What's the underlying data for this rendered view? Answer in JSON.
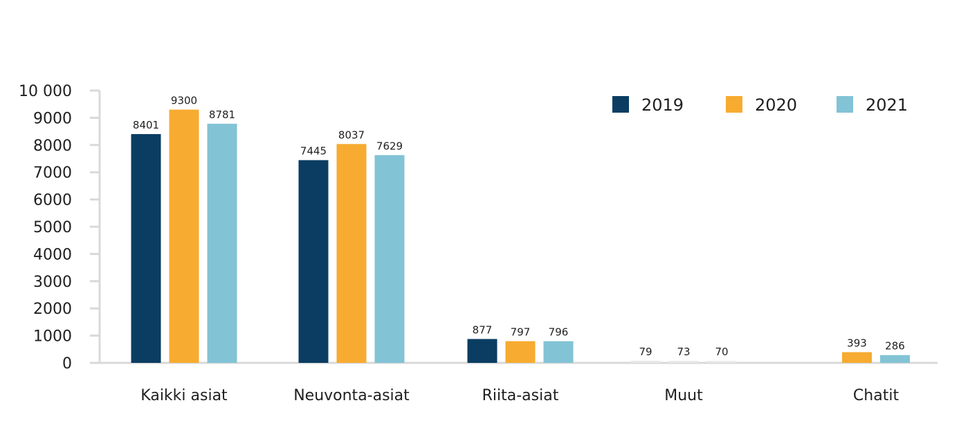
{
  "chart_data": {
    "type": "bar",
    "title": "",
    "xlabel": "",
    "ylabel": "",
    "ylim": [
      0,
      10000
    ],
    "yticks": [
      0,
      1000,
      2000,
      3000,
      4000,
      5000,
      6000,
      7000,
      8000,
      9000,
      10000
    ],
    "ytick_labels": [
      "0",
      "1000",
      "2000",
      "3000",
      "4000",
      "5000",
      "6000",
      "7000",
      "8000",
      "9000",
      "10 000"
    ],
    "grid": false,
    "legend_position": "top-right",
    "categories": [
      "Kaikki asiat",
      "Neuvonta-asiat",
      "Riita-asiat",
      "Muut",
      "Chatit"
    ],
    "series": [
      {
        "name": "2019",
        "color": "#0b3d62",
        "values": [
          8401,
          7445,
          877,
          79,
          null
        ]
      },
      {
        "name": "2020",
        "color": "#f7ab30",
        "values": [
          9300,
          8037,
          797,
          73,
          393
        ]
      },
      {
        "name": "2021",
        "color": "#82c3d6",
        "values": [
          8781,
          7629,
          796,
          70,
          286
        ]
      }
    ],
    "axis_color": "#d9d9d9"
  }
}
